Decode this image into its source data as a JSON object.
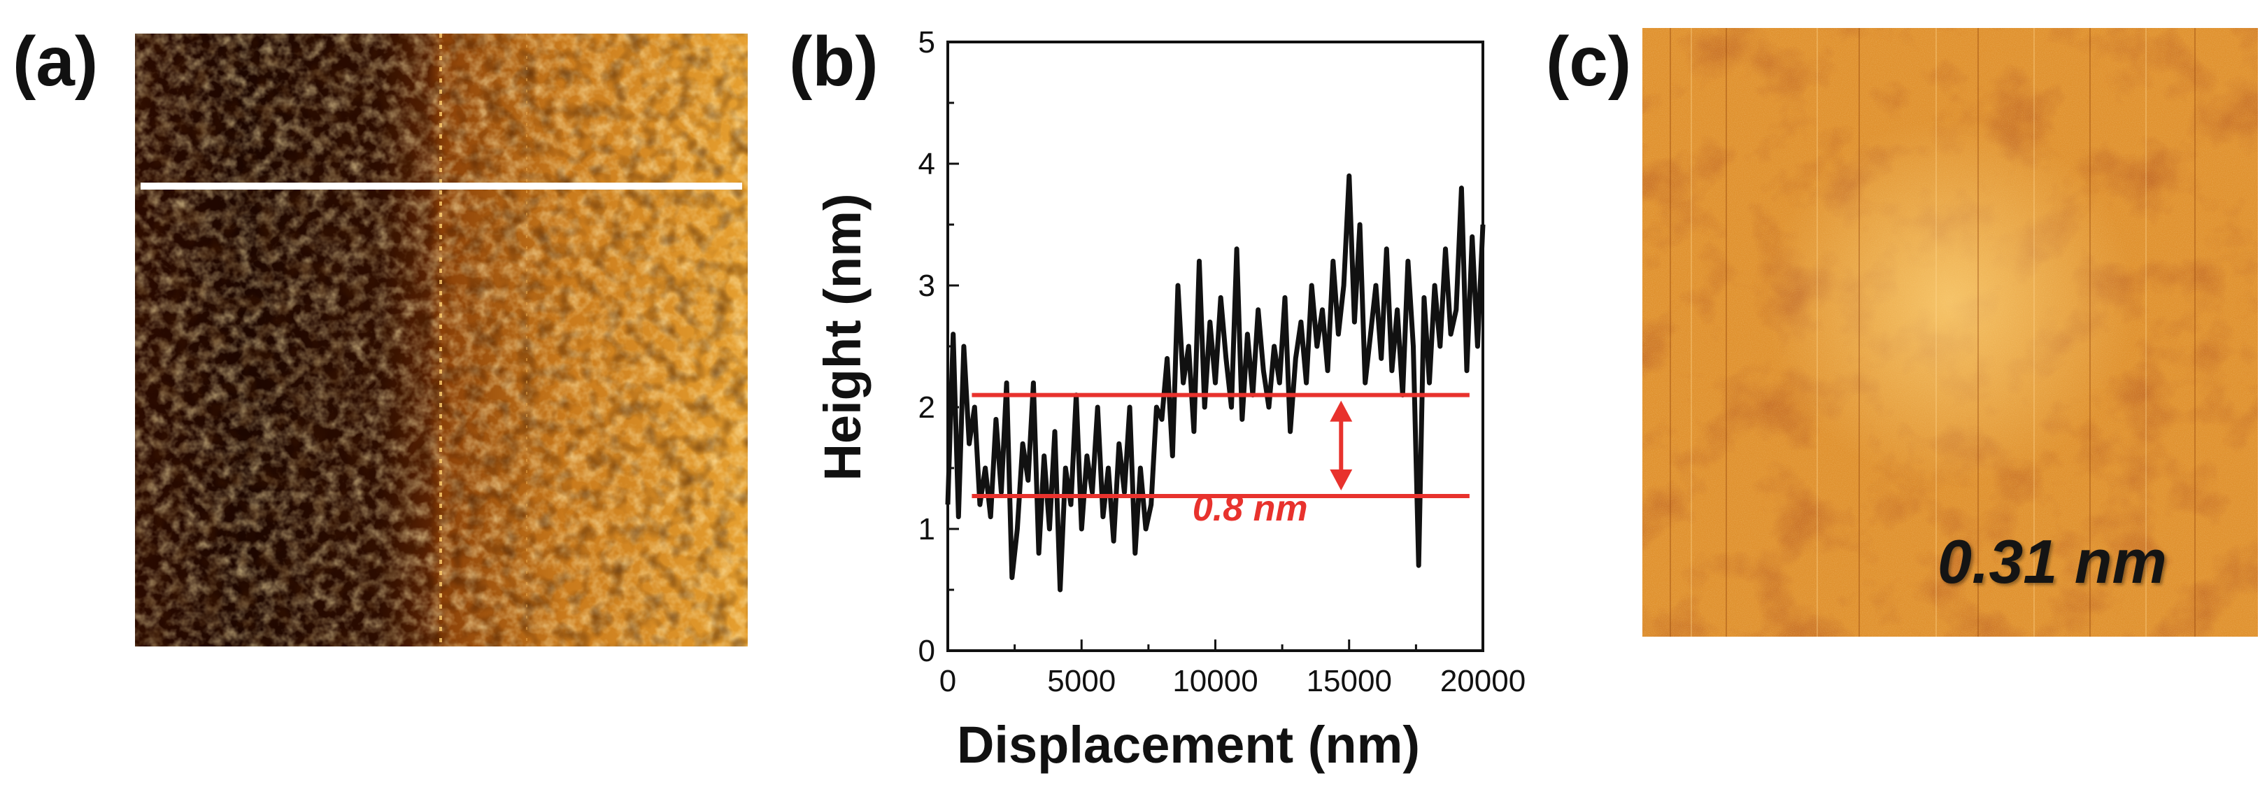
{
  "panels": {
    "a": {
      "label": "(a)"
    },
    "b": {
      "label": "(b)"
    },
    "c": {
      "label": "(c)",
      "roughness_label": "0.31 nm"
    }
  },
  "colors": {
    "profile": "#111111",
    "annotation": "#e8322d",
    "scan_line": "#ffffff",
    "afm_dark": "#1a0600",
    "afm_mid": "#b85a10",
    "afm_bright": "#ffc858"
  },
  "chart_data": {
    "type": "line",
    "xlabel": "Displacement (nm)",
    "ylabel": "Height (nm)",
    "xlim": [
      0,
      20000
    ],
    "ylim": [
      0,
      5
    ],
    "xticks": [
      0,
      5000,
      10000,
      15000,
      20000
    ],
    "yticks": [
      0,
      1,
      2,
      3,
      4,
      5
    ],
    "series": [
      {
        "name": "height profile",
        "x": [
          0,
          200,
          400,
          600,
          800,
          1000,
          1200,
          1400,
          1600,
          1800,
          2000,
          2200,
          2400,
          2600,
          2800,
          3000,
          3200,
          3400,
          3600,
          3800,
          4000,
          4200,
          4400,
          4600,
          4800,
          5000,
          5200,
          5400,
          5600,
          5800,
          6000,
          6200,
          6400,
          6600,
          6800,
          7000,
          7200,
          7400,
          7600,
          7800,
          8000,
          8200,
          8400,
          8600,
          8800,
          9000,
          9200,
          9400,
          9600,
          9800,
          10000,
          10200,
          10400,
          10600,
          10800,
          11000,
          11200,
          11400,
          11600,
          11800,
          12000,
          12200,
          12400,
          12600,
          12800,
          13000,
          13200,
          13400,
          13600,
          13800,
          14000,
          14200,
          14400,
          14600,
          14800,
          15000,
          15200,
          15400,
          15600,
          15800,
          16000,
          16200,
          16400,
          16600,
          16800,
          17000,
          17200,
          17400,
          17600,
          17800,
          18000,
          18200,
          18400,
          18600,
          18800,
          19000,
          19200,
          19400,
          19600,
          19800,
          20000
        ],
        "values": [
          1.2,
          2.6,
          1.1,
          2.5,
          1.7,
          2.0,
          1.2,
          1.5,
          1.1,
          1.9,
          1.3,
          2.2,
          0.6,
          1.0,
          1.7,
          1.4,
          2.2,
          0.8,
          1.6,
          1.0,
          1.8,
          0.5,
          1.5,
          1.2,
          2.1,
          1.0,
          1.6,
          1.3,
          2.0,
          1.1,
          1.5,
          0.9,
          1.7,
          1.3,
          2.0,
          0.8,
          1.5,
          1.0,
          1.2,
          2.0,
          1.9,
          2.4,
          1.6,
          3.0,
          2.2,
          2.5,
          1.8,
          3.2,
          2.0,
          2.7,
          2.2,
          2.9,
          2.4,
          2.0,
          3.3,
          1.9,
          2.6,
          2.1,
          2.8,
          2.3,
          2.0,
          2.5,
          2.2,
          2.9,
          1.8,
          2.4,
          2.7,
          2.2,
          3.0,
          2.5,
          2.8,
          2.3,
          3.2,
          2.6,
          3.0,
          3.9,
          2.7,
          3.5,
          2.2,
          2.6,
          3.0,
          2.4,
          3.3,
          2.3,
          2.8,
          2.1,
          3.2,
          2.5,
          0.7,
          2.9,
          2.2,
          3.0,
          2.5,
          3.3,
          2.6,
          2.8,
          3.8,
          2.3,
          3.4,
          2.5,
          3.5
        ]
      }
    ],
    "annotations": {
      "upper_line_y": 2.1,
      "lower_line_y": 1.27,
      "line_x_range": [
        900,
        19500
      ],
      "arrow_x": 14700,
      "text": "0.8 nm",
      "text_x": 11300,
      "text_y": 1.07
    }
  }
}
